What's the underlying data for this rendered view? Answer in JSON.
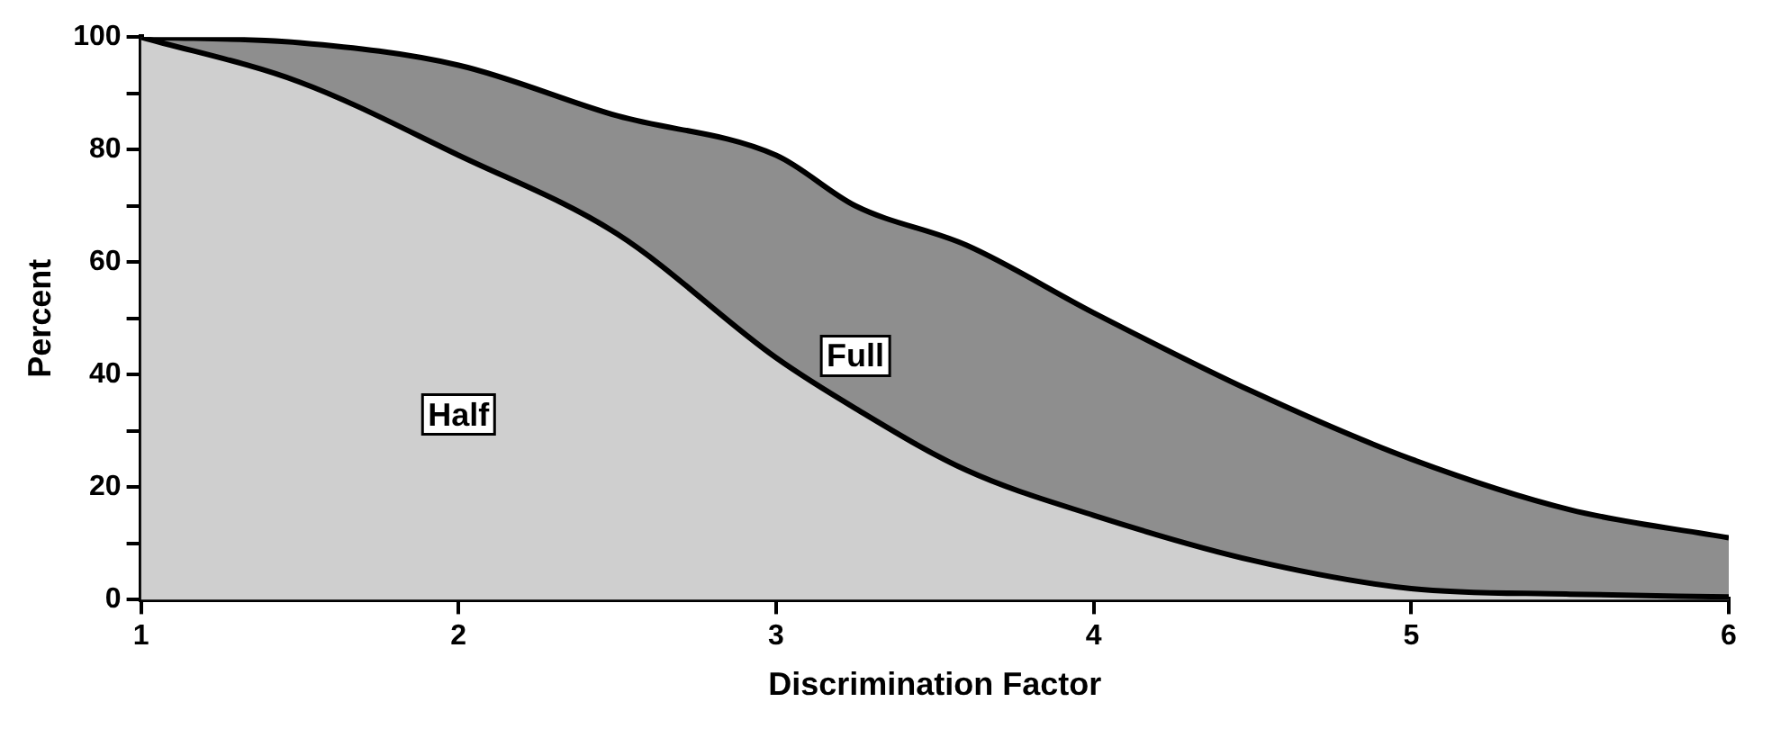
{
  "chart_data": {
    "type": "area",
    "xlabel": "Discrimination Factor",
    "ylabel": "Percent",
    "x": [
      1,
      1.5,
      2,
      2.5,
      3,
      3.25,
      3.6,
      4,
      4.5,
      5,
      5.5,
      6
    ],
    "series": [
      {
        "name": "Full",
        "color": "#8e8e8e",
        "values": [
          100,
          99,
          95,
          86,
          79,
          70,
          63,
          51,
          37,
          25,
          16,
          11
        ]
      },
      {
        "name": "Half",
        "color": "#cfcfcf",
        "values": [
          100,
          92,
          79,
          65,
          43,
          34,
          23,
          15,
          7,
          2,
          1,
          0.5
        ]
      }
    ],
    "xlim": [
      1,
      6
    ],
    "xticks": [
      1,
      2,
      3,
      4,
      5,
      6
    ],
    "ylim": [
      0,
      100
    ],
    "yticks": [
      0,
      {
        "value": 10,
        "label": null
      },
      20,
      {
        "value": 30,
        "label": null
      },
      40,
      {
        "value": 50,
        "label": null
      },
      60,
      {
        "value": 70,
        "label": null
      },
      80,
      {
        "value": 90,
        "label": null
      },
      100
    ],
    "grid": false,
    "legend": false
  }
}
